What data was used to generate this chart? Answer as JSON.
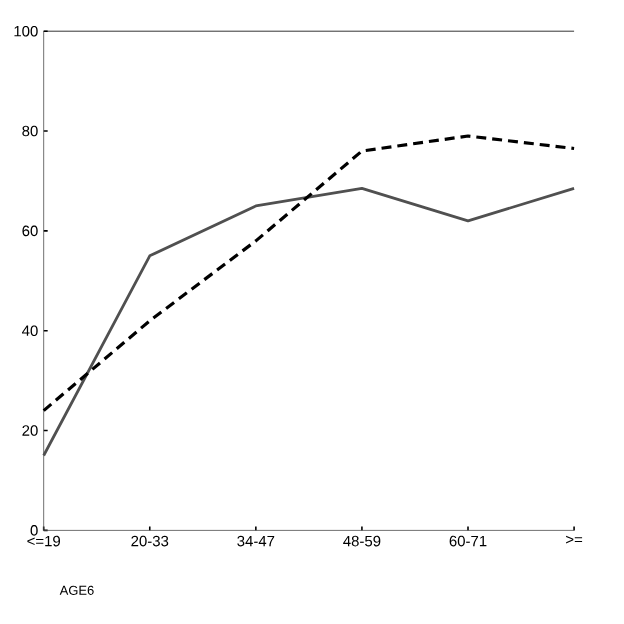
{
  "chart_data": {
    "type": "line",
    "xlabel": "AGE6",
    "categories": [
      "<=19",
      "20-33",
      "34-47",
      "48-59",
      "60-71",
      ">="
    ],
    "series": [
      {
        "color": "#505050",
        "line_style": "solid",
        "values": [
          15,
          55,
          65,
          68.5,
          62,
          68.5
        ]
      },
      {
        "color": "#000000",
        "line_style": "dashed",
        "values": [
          24,
          42,
          58,
          76,
          79,
          76.5
        ]
      }
    ],
    "ylim": [
      0,
      100
    ],
    "yticks": [
      0,
      20,
      40,
      60,
      80,
      100
    ],
    "grid": false,
    "marker": "none"
  }
}
